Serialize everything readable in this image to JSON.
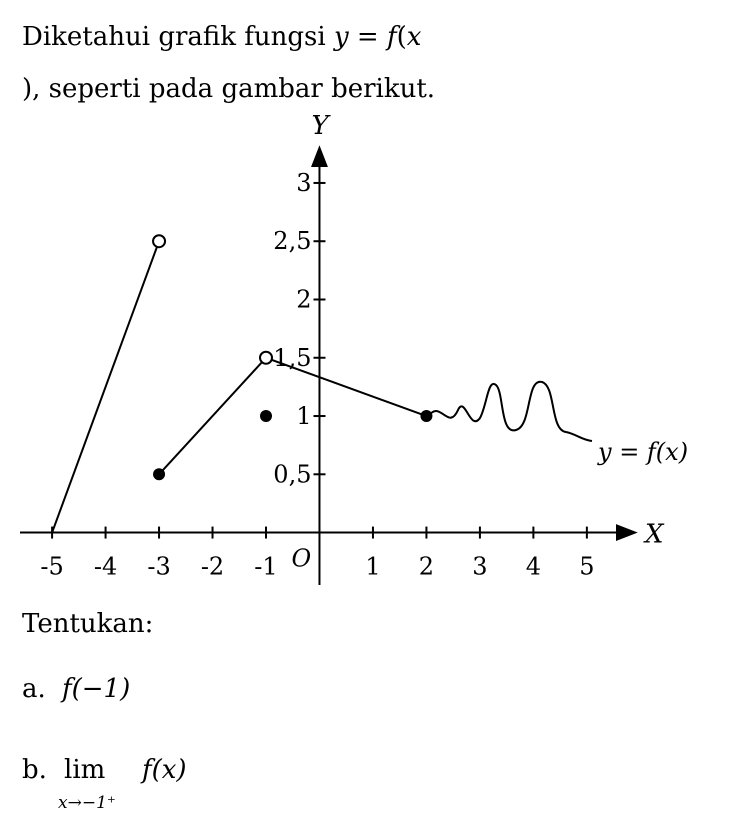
{
  "intro": [
    "Diketahui grafik fungsi ",
    "y",
    " = ",
    "f",
    "(",
    "x",
    "), seperti pada gambar berikut."
  ],
  "chart_data": {
    "type": "line",
    "xlabel": "X",
    "ylabel": "Y",
    "origin_label": "O",
    "curve_label": "y = f(x)",
    "xlim": [
      -5.6,
      5.9
    ],
    "ylim": [
      -0.45,
      3.3
    ],
    "xticks": [
      -5,
      -4,
      -3,
      -2,
      -1,
      1,
      2,
      3,
      4,
      5
    ],
    "yticks": [
      {
        "value": 0.5,
        "label": "0,5"
      },
      1,
      {
        "value": 1.5,
        "label": "1,5"
      },
      2,
      {
        "value": 2.5,
        "label": "2,5"
      },
      3
    ],
    "series": [
      {
        "x": [
          -5,
          -3
        ],
        "values": [
          0,
          2.5
        ]
      },
      {
        "x": [
          -3,
          -1,
          2
        ],
        "values": [
          0.5,
          1.5,
          1
        ]
      }
    ],
    "points": [
      {
        "x": -3,
        "y": 2.5,
        "open": true
      },
      {
        "x": -3,
        "y": 0.5,
        "open": false
      },
      {
        "x": -1,
        "y": 1.5,
        "open": true
      },
      {
        "x": -1,
        "y": 1,
        "open": false
      },
      {
        "x": 2,
        "y": 1,
        "open": false
      }
    ]
  },
  "task": "Tentukan:",
  "questions": [
    {
      "label": "a.",
      "expr": "f(−1)"
    },
    {
      "label": "b.",
      "lim": "lim",
      "sub": "x→−1⁺",
      "expr": "f(x)"
    }
  ]
}
